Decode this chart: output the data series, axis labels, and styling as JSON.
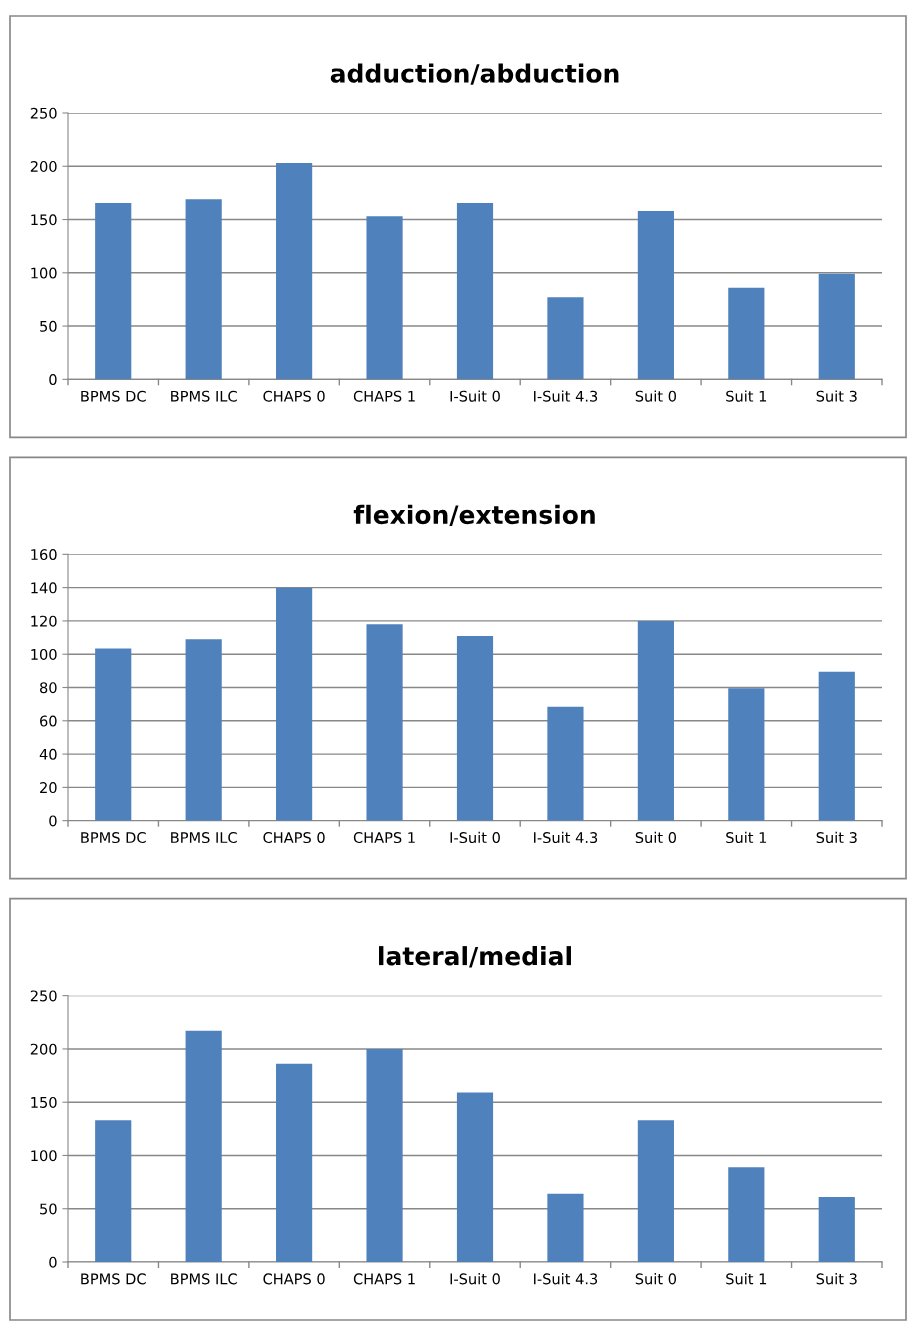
{
  "chart_data": [
    {
      "type": "bar",
      "title": "adduction/abduction",
      "categories": [
        "BPMS DC",
        "BPMS ILC",
        "CHAPS 0",
        "CHAPS 1",
        "I-Suit 0",
        "I-Suit 4.3",
        "Suit 0",
        "Suit 1",
        "Suit 3"
      ],
      "values": [
        165.5,
        169,
        203,
        153,
        165.5,
        77,
        158,
        86,
        99
      ],
      "color": "#4f81bd",
      "ylim": [
        0,
        250
      ],
      "yticks": [
        0,
        50,
        100,
        150,
        200,
        250
      ],
      "grid": "y"
    },
    {
      "type": "bar",
      "title": "flexion/extension",
      "categories": [
        "BPMS DC",
        "BPMS ILC",
        "CHAPS 0",
        "CHAPS 1",
        "I-Suit 0",
        "I-Suit 4.3",
        "Suit 0",
        "Suit 1",
        "Suit 3"
      ],
      "values": [
        103.5,
        109,
        140,
        118,
        111,
        68.5,
        120,
        79.5,
        89.5
      ],
      "color": "#4f81bd",
      "ylim": [
        0,
        160
      ],
      "yticks": [
        0,
        20,
        40,
        60,
        80,
        100,
        120,
        140,
        160
      ],
      "grid": "y"
    },
    {
      "type": "bar",
      "title": "lateral/medial",
      "categories": [
        "BPMS DC",
        "BPMS ILC",
        "CHAPS 0",
        "CHAPS 1",
        "I-Suit 0",
        "I-Suit 4.3",
        "Suit 0",
        "Suit 1",
        "Suit 3"
      ],
      "values": [
        133,
        217,
        186,
        200,
        159,
        64,
        133,
        89,
        61
      ],
      "color": "#4f81bd",
      "ylim": [
        0,
        250
      ],
      "yticks": [
        0,
        50,
        100,
        150,
        200,
        250
      ],
      "grid": "y"
    }
  ]
}
